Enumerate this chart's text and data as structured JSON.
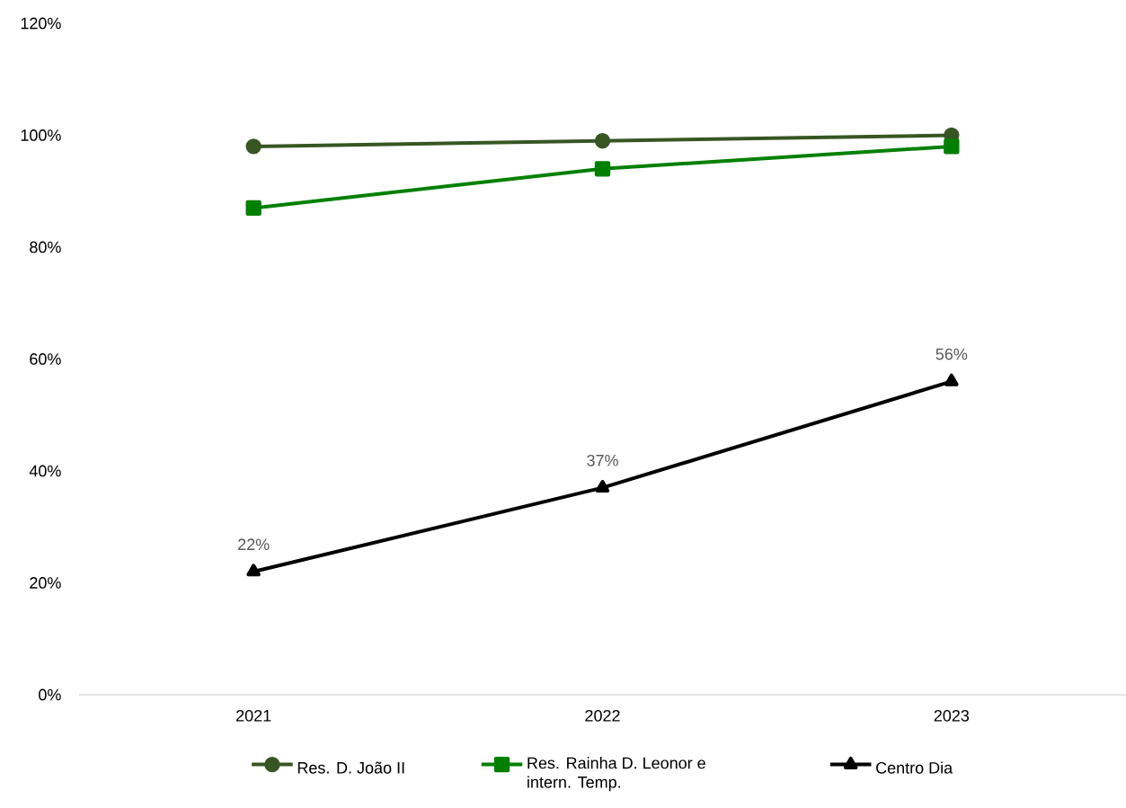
{
  "chart_data": {
    "type": "line",
    "categories": [
      "2021",
      "2022",
      "2023"
    ],
    "series": [
      {
        "name": "Res. D. João II",
        "color": "#375623",
        "marker": "circle",
        "values": [
          98,
          99,
          100
        ]
      },
      {
        "name": "Res. Rainha D. Leonor e intern. Temp.",
        "color": "#008000",
        "marker": "square",
        "values": [
          87,
          94,
          98
        ]
      },
      {
        "name": "Centro Dia",
        "color": "#000000",
        "marker": "triangle",
        "values": [
          22,
          37,
          56
        ],
        "value_labels": [
          "22%",
          "37%",
          "56%"
        ]
      }
    ],
    "ylim": [
      0,
      120
    ],
    "yticks": [
      {
        "value": 0,
        "label": "0%"
      },
      {
        "value": 20,
        "label": "20%"
      },
      {
        "value": 40,
        "label": "40%"
      },
      {
        "value": 60,
        "label": "60%"
      },
      {
        "value": 80,
        "label": "80%"
      },
      {
        "value": 100,
        "label": "100%"
      },
      {
        "value": 120,
        "label": "120%"
      }
    ],
    "grid": false,
    "legend": "bottom",
    "line_style": "solid"
  }
}
